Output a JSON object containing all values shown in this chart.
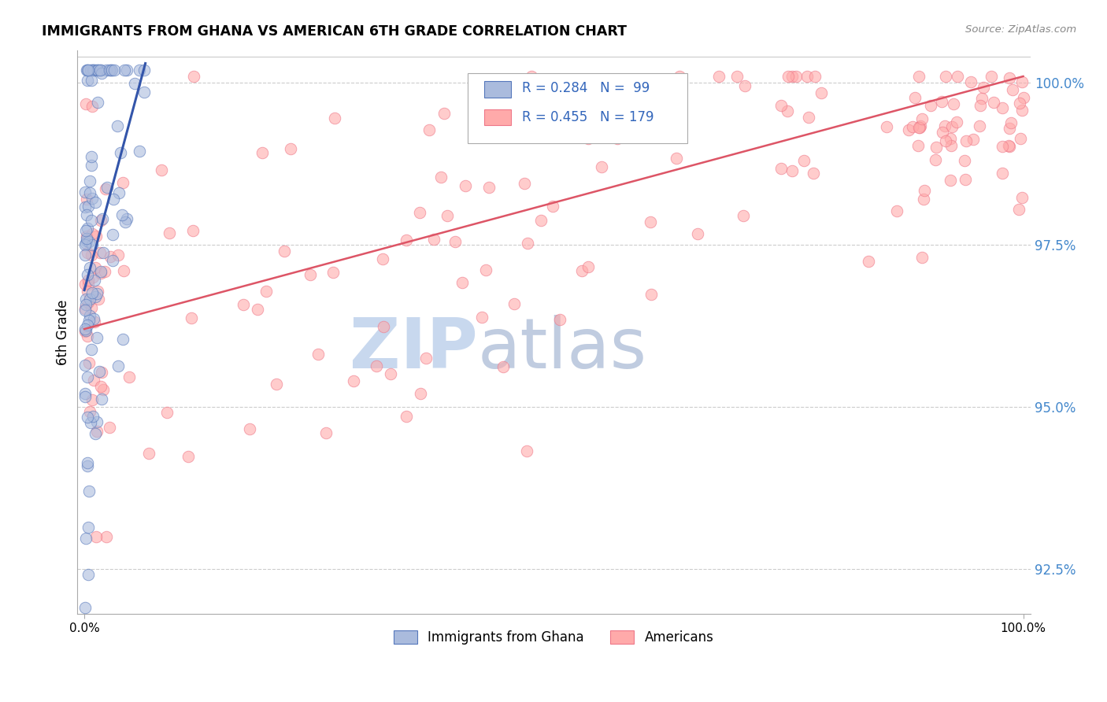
{
  "title": "IMMIGRANTS FROM GHANA VS AMERICAN 6TH GRADE CORRELATION CHART",
  "source": "Source: ZipAtlas.com",
  "ylabel": "6th Grade",
  "ytick_values": [
    1.0,
    0.975,
    0.95,
    0.925
  ],
  "legend_blue_r": "R = 0.284",
  "legend_blue_n": "N =  99",
  "legend_pink_r": "R = 0.455",
  "legend_pink_n": "N = 179",
  "blue_fill": "#aabbdd",
  "blue_edge": "#5577bb",
  "pink_fill": "#ffaaaa",
  "pink_edge": "#ee7788",
  "trendline_blue": "#3355aa",
  "trendline_pink": "#dd5566",
  "watermark_zip": "#c8d8ee",
  "watermark_atlas": "#c0cce0",
  "xmin": 0.0,
  "xmax": 1.0,
  "ymin": 0.918,
  "ymax": 1.005,
  "blue_trend_x0": 0.0,
  "blue_trend_x1": 0.065,
  "blue_trend_y0": 0.968,
  "blue_trend_y1": 1.003,
  "pink_trend_x0": 0.0,
  "pink_trend_x1": 1.0,
  "pink_trend_y0": 0.962,
  "pink_trend_y1": 1.001
}
